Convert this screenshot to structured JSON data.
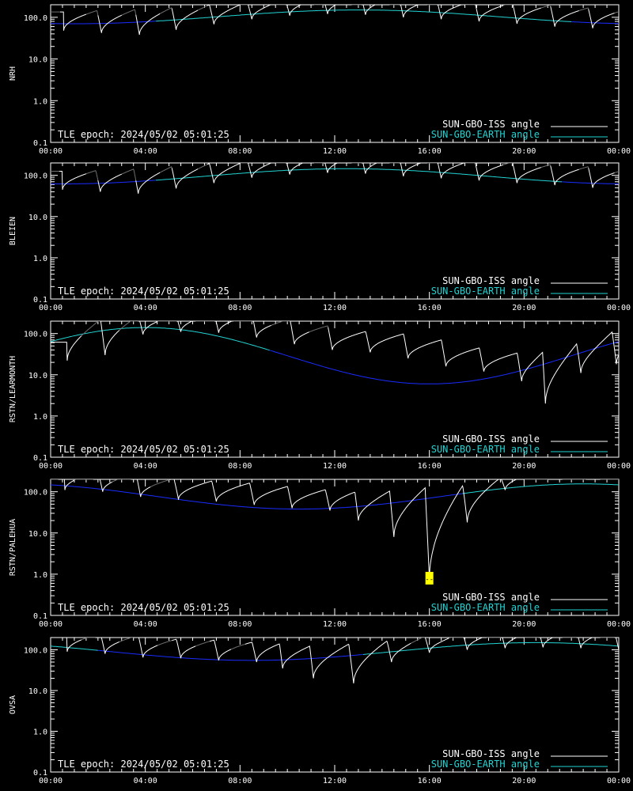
{
  "colors": {
    "background": "#000000",
    "axis": "#ffffff",
    "iss_visible": "#ffffff",
    "iss_hidden": "#6e6e6e",
    "earth_above": "#22d3d3",
    "earth_below": "#1a2cff",
    "marker": "#ffff00",
    "marker_text": "#000000"
  },
  "shared": {
    "epoch_label": "TLE epoch: 2024/05/02 05:01:25",
    "legend_iss": "SUN-GBO-ISS angle",
    "legend_earth": "SUN-GBO-EARTH angle",
    "marker_text": "--",
    "x_tick_labels": [
      "00:00",
      "04:00",
      "08:00",
      "12:00",
      "16:00",
      "20:00",
      "00:00"
    ],
    "y_tick_labels": [
      "0.1",
      "1.0",
      "10.0",
      "100.0"
    ]
  },
  "chart_data": [
    {
      "type": "line",
      "ylabel": "NRH",
      "xlim_hours": [
        0,
        24
      ],
      "ylim": [
        0.1,
        200
      ],
      "yscale": "log",
      "xticks_hours": [
        0,
        4,
        8,
        12,
        16,
        20,
        24
      ],
      "yticks": [
        0.1,
        1.0,
        10.0,
        100.0
      ],
      "earth_angle": {
        "peak_hour": 13.0,
        "peak": 150,
        "trough": 70
      },
      "earth_above_hours": [
        4.4,
        22.0
      ],
      "iss_dips": [
        {
          "hour": 0.55,
          "min": 48
        },
        {
          "hour": 2.15,
          "min": 42
        },
        {
          "hour": 3.75,
          "min": 38
        },
        {
          "hour": 5.3,
          "min": 50
        },
        {
          "hour": 6.9,
          "min": 68
        },
        {
          "hour": 8.5,
          "min": 90
        },
        {
          "hour": 10.1,
          "min": 110
        },
        {
          "hour": 11.7,
          "min": 120
        },
        {
          "hour": 13.3,
          "min": 115
        },
        {
          "hour": 14.9,
          "min": 100
        },
        {
          "hour": 16.5,
          "min": 90
        },
        {
          "hour": 18.1,
          "min": 80
        },
        {
          "hour": 19.7,
          "min": 70
        },
        {
          "hour": 21.3,
          "min": 60
        },
        {
          "hour": 22.9,
          "min": 55
        }
      ],
      "iss_hidden_hours": [
        [
          0.0,
          0.4
        ],
        [
          1.5,
          2.0
        ],
        [
          3.0,
          3.6
        ],
        [
          4.6,
          5.1
        ],
        [
          6.2,
          6.6
        ],
        [
          8.0,
          8.3
        ],
        [
          9.5,
          9.9
        ],
        [
          11.1,
          11.5
        ],
        [
          12.7,
          13.1
        ],
        [
          14.3,
          14.7
        ],
        [
          15.9,
          16.3
        ],
        [
          17.5,
          17.9
        ],
        [
          19.1,
          19.5
        ],
        [
          20.7,
          21.1
        ],
        [
          22.3,
          22.7
        ],
        [
          23.8,
          24.0
        ]
      ],
      "markers": []
    },
    {
      "type": "line",
      "ylabel": "BLEIEN",
      "xlim_hours": [
        0,
        24
      ],
      "ylim": [
        0.1,
        200
      ],
      "yscale": "log",
      "xticks_hours": [
        0,
        4,
        8,
        12,
        16,
        20,
        24
      ],
      "yticks": [
        0.1,
        1.0,
        10.0,
        100.0
      ],
      "earth_angle": {
        "peak_hour": 12.5,
        "peak": 145,
        "trough": 62
      },
      "earth_above_hours": [
        4.4,
        21.6
      ],
      "iss_dips": [
        {
          "hour": 0.5,
          "min": 45
        },
        {
          "hour": 2.1,
          "min": 40
        },
        {
          "hour": 3.7,
          "min": 36
        },
        {
          "hour": 5.3,
          "min": 48
        },
        {
          "hour": 6.9,
          "min": 65
        },
        {
          "hour": 8.5,
          "min": 88
        },
        {
          "hour": 10.1,
          "min": 105
        },
        {
          "hour": 11.7,
          "min": 115
        },
        {
          "hour": 13.3,
          "min": 110
        },
        {
          "hour": 14.9,
          "min": 95
        },
        {
          "hour": 16.5,
          "min": 85
        },
        {
          "hour": 18.1,
          "min": 75
        },
        {
          "hour": 19.7,
          "min": 65
        },
        {
          "hour": 21.3,
          "min": 58
        },
        {
          "hour": 22.9,
          "min": 50
        }
      ],
      "iss_hidden_hours": [
        [
          0.0,
          0.35
        ],
        [
          1.5,
          2.0
        ],
        [
          3.0,
          3.6
        ],
        [
          4.6,
          5.1
        ],
        [
          6.2,
          6.6
        ],
        [
          8.0,
          8.3
        ],
        [
          9.5,
          9.9
        ],
        [
          11.1,
          11.5
        ],
        [
          12.7,
          13.1
        ],
        [
          14.3,
          14.7
        ],
        [
          15.9,
          16.3
        ],
        [
          17.5,
          17.9
        ],
        [
          19.1,
          19.5
        ],
        [
          20.7,
          21.1
        ],
        [
          22.3,
          22.7
        ],
        [
          23.8,
          24.0
        ]
      ],
      "markers": []
    },
    {
      "type": "line",
      "ylabel": "RSTN/LEARMONTH",
      "xlim_hours": [
        0,
        24
      ],
      "ylim": [
        0.1,
        200
      ],
      "yscale": "log",
      "xticks_hours": [
        0,
        4,
        8,
        12,
        16,
        20,
        24
      ],
      "yticks": [
        0.1,
        1.0,
        10.0,
        100.0
      ],
      "earth_angle": {
        "peak_hour": 4.0,
        "peak": 140,
        "trough": 6
      },
      "earth_above_hours": [
        0.0,
        9.2
      ],
      "iss_dips": [
        {
          "hour": 0.7,
          "min": 22
        },
        {
          "hour": 2.3,
          "min": 30
        },
        {
          "hour": 3.9,
          "min": 95
        },
        {
          "hour": 5.5,
          "min": 110
        },
        {
          "hour": 7.1,
          "min": 105
        },
        {
          "hour": 8.7,
          "min": 80
        },
        {
          "hour": 10.3,
          "min": 55
        },
        {
          "hour": 11.9,
          "min": 40
        },
        {
          "hour": 13.5,
          "min": 35
        },
        {
          "hour": 15.1,
          "min": 25
        },
        {
          "hour": 16.7,
          "min": 16
        },
        {
          "hour": 18.3,
          "min": 12
        },
        {
          "hour": 19.9,
          "min": 7
        },
        {
          "hour": 20.9,
          "min": 2
        },
        {
          "hour": 22.4,
          "min": 11
        },
        {
          "hour": 23.9,
          "min": 18
        }
      ],
      "iss_hidden_hours": [
        [
          1.3,
          2.1
        ],
        [
          2.9,
          3.7
        ],
        [
          4.5,
          5.3
        ],
        [
          6.1,
          6.9
        ],
        [
          7.7,
          8.5
        ],
        [
          9.3,
          10.1
        ],
        [
          10.9,
          11.7
        ]
      ],
      "markers": []
    },
    {
      "type": "line",
      "ylabel": "RSTN/PALEHUA",
      "xlim_hours": [
        0,
        24
      ],
      "ylim": [
        0.1,
        200
      ],
      "yscale": "log",
      "xticks_hours": [
        0,
        4,
        8,
        12,
        16,
        20,
        24
      ],
      "yticks": [
        0.1,
        1.0,
        10.0,
        100.0
      ],
      "earth_angle": {
        "peak_hour": 22.5,
        "peak": 155,
        "trough": 38
      },
      "earth_above_hours": [
        17.4,
        24.0
      ],
      "iss_dips": [
        {
          "hour": 0.6,
          "min": 110
        },
        {
          "hour": 2.2,
          "min": 100
        },
        {
          "hour": 3.8,
          "min": 75
        },
        {
          "hour": 5.4,
          "min": 65
        },
        {
          "hour": 7.0,
          "min": 58
        },
        {
          "hour": 8.6,
          "min": 48
        },
        {
          "hour": 10.2,
          "min": 40
        },
        {
          "hour": 11.8,
          "min": 35
        },
        {
          "hour": 13.0,
          "min": 20
        },
        {
          "hour": 14.5,
          "min": 8
        },
        {
          "hour": 16.0,
          "min": 0.75
        },
        {
          "hour": 17.6,
          "min": 18
        },
        {
          "hour": 19.2,
          "min": 110
        }
      ],
      "iss_hidden_hours": [
        [
          0.0,
          0.3
        ],
        [
          1.0,
          1.8
        ],
        [
          2.6,
          3.4
        ],
        [
          4.2,
          5.0
        ],
        [
          20.0,
          21.0
        ],
        [
          21.6,
          22.6
        ],
        [
          23.2,
          24.0
        ]
      ],
      "markers": [
        {
          "hour": 16.0,
          "value": 0.8
        }
      ]
    },
    {
      "type": "line",
      "ylabel": "OVSA",
      "xlim_hours": [
        0,
        24
      ],
      "ylim": [
        0.1,
        200
      ],
      "yscale": "log",
      "xticks_hours": [
        0,
        4,
        8,
        12,
        16,
        20,
        24
      ],
      "yticks": [
        0.1,
        1.0,
        10.0,
        100.0
      ],
      "earth_angle": {
        "peak_hour": 20.5,
        "peak": 150,
        "trough": 55
      },
      "earth_above_hours": [
        0.0,
        2.0,
        13.2,
        24.0
      ],
      "iss_dips": [
        {
          "hour": 0.7,
          "min": 90
        },
        {
          "hour": 2.3,
          "min": 80
        },
        {
          "hour": 3.9,
          "min": 65
        },
        {
          "hour": 5.5,
          "min": 62
        },
        {
          "hour": 7.1,
          "min": 55
        },
        {
          "hour": 8.7,
          "min": 50
        },
        {
          "hour": 9.8,
          "min": 35
        },
        {
          "hour": 11.1,
          "min": 20
        },
        {
          "hour": 12.8,
          "min": 15
        },
        {
          "hour": 14.4,
          "min": 50
        },
        {
          "hour": 16.0,
          "min": 85
        },
        {
          "hour": 17.6,
          "min": 100
        },
        {
          "hour": 19.2,
          "min": 110
        },
        {
          "hour": 20.8,
          "min": 115
        },
        {
          "hour": 22.4,
          "min": 110
        },
        {
          "hour": 24.0,
          "min": 100
        }
      ],
      "iss_hidden_hours": [
        [
          1.3,
          1.9
        ],
        [
          2.9,
          3.5
        ],
        [
          4.5,
          5.1
        ],
        [
          6.1,
          6.7
        ],
        [
          7.6,
          8.2
        ],
        [
          15.2,
          15.8
        ],
        [
          16.8,
          17.4
        ],
        [
          18.4,
          19.0
        ],
        [
          20.0,
          20.6
        ],
        [
          21.6,
          22.2
        ],
        [
          23.2,
          23.8
        ]
      ],
      "markers": []
    }
  ]
}
